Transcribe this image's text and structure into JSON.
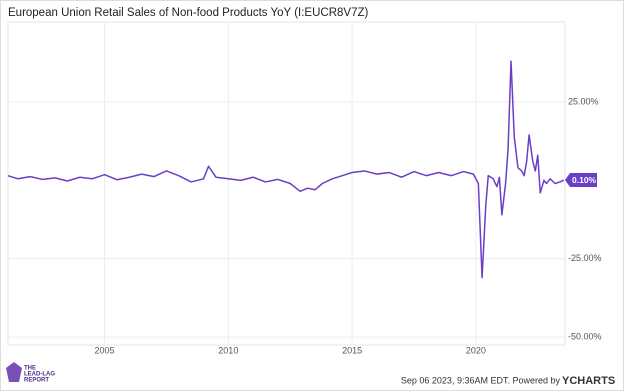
{
  "chart_data": {
    "type": "line",
    "title": "European Union Retail Sales of Non-food Products YoY (I:EUCR8V7Z)",
    "x": [
      2001.1,
      2001.5,
      2002.0,
      2002.5,
      2003.0,
      2003.5,
      2004.0,
      2004.5,
      2005.0,
      2005.5,
      2006.0,
      2006.5,
      2007.0,
      2007.5,
      2008.0,
      2008.5,
      2009.0,
      2009.2,
      2009.5,
      2010.0,
      2010.5,
      2011.0,
      2011.5,
      2012.0,
      2012.5,
      2012.9,
      2013.2,
      2013.5,
      2013.8,
      2014.2,
      2014.6,
      2015.0,
      2015.5,
      2016.0,
      2016.5,
      2017.0,
      2017.5,
      2018.0,
      2018.5,
      2019.0,
      2019.5,
      2019.9,
      2020.1,
      2020.25,
      2020.4,
      2020.5,
      2020.7,
      2020.85,
      2020.95,
      2021.05,
      2021.2,
      2021.3,
      2021.42,
      2021.55,
      2021.7,
      2021.85,
      2021.95,
      2022.05,
      2022.15,
      2022.3,
      2022.4,
      2022.5,
      2022.6,
      2022.75,
      2022.85,
      2023.0,
      2023.2,
      2023.4,
      2023.55
    ],
    "series": [
      {
        "name": "European Union Retail Sales of Non-food Products YoY",
        "color": "#6a3fc7",
        "values": [
          1.5,
          0.5,
          1.2,
          0.3,
          0.8,
          -0.2,
          1.0,
          0.5,
          1.8,
          0.2,
          1.0,
          2.0,
          1.2,
          3.0,
          1.5,
          -0.5,
          0.5,
          4.5,
          1.0,
          0.5,
          0.0,
          1.0,
          -0.5,
          0.3,
          -1.0,
          -3.5,
          -2.5,
          -3.0,
          -1.0,
          0.5,
          1.5,
          2.5,
          3.0,
          2.0,
          2.5,
          1.0,
          2.8,
          1.5,
          2.5,
          1.5,
          2.8,
          2.0,
          -1.0,
          -31,
          -8,
          1.5,
          0.5,
          -2,
          1.0,
          -11,
          -1,
          10,
          38,
          14,
          4,
          3,
          1.5,
          6,
          14.5,
          6,
          3,
          8,
          -4,
          0,
          -1,
          0.5,
          -1.0,
          -0.5,
          0.1
        ]
      }
    ],
    "last_value_label": "0.10%",
    "xlim": [
      2001.1,
      2023.6
    ],
    "xticks": [
      2005,
      2010,
      2015,
      2020
    ],
    "ylim": [
      -52.5,
      50.5
    ],
    "yticks": [
      {
        "value": 25,
        "label": "25.00%"
      },
      {
        "value": -25,
        "label": "-25.00%"
      },
      {
        "value": -50,
        "label": "-50.00%"
      }
    ],
    "grid": true,
    "footer": "Sep 06 2023, 9:36AM EDT.  Powered by",
    "brand": "YCHARTS",
    "logo_text": [
      "THE",
      "LEAD-LAG",
      "REPORT"
    ]
  }
}
